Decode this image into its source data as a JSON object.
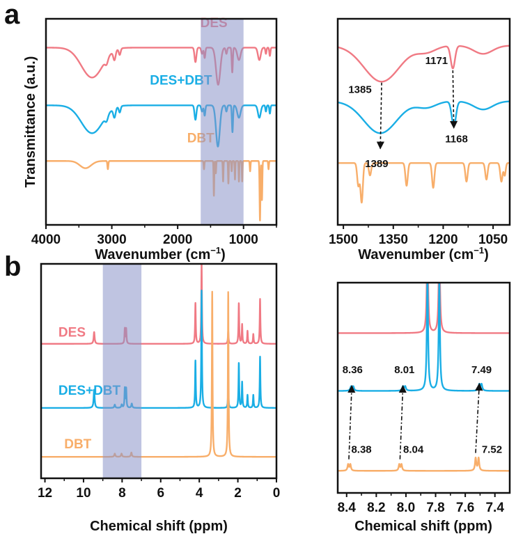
{
  "colors": {
    "DES": "#f07a84",
    "DES+DBT": "#1aaee5",
    "DBT": "#f8ae6a",
    "shade": "#8a93c8"
  },
  "chart_data": [
    {
      "id": "a_left",
      "panel_label": "a",
      "type": "line",
      "xlabel": "Wavenumber (cm",
      "xlabel_sup": "−1",
      "xlabel_end": ")",
      "ylabel": "Transmittance (a.u.)",
      "xlim": [
        4000,
        500
      ],
      "ylim": [
        0,
        10
      ],
      "xticks": [
        4000,
        3000,
        2000,
        1000
      ],
      "minor_ticks": [
        3500,
        2500,
        1500,
        500
      ],
      "shade": [
        1650,
        1000
      ],
      "series": [
        {
          "name": "DES",
          "label": "DES",
          "offset": 8.6,
          "label_x": 1450,
          "label_y": 9.6,
          "peaks": [
            [
              3300,
              1.45,
              230
            ],
            [
              3080,
              0.25,
              30
            ],
            [
              2960,
              0.45,
              25
            ],
            [
              2880,
              0.3,
              20
            ],
            [
              1730,
              0.7,
              20
            ],
            [
              1630,
              0.3,
              18
            ],
            [
              1590,
              0.5,
              14
            ],
            [
              1385,
              1.8,
              45
            ],
            [
              1260,
              0.3,
              15
            ],
            [
              1171,
              1.2,
              12
            ],
            [
              1070,
              0.6,
              35
            ],
            [
              760,
              0.6,
              30
            ],
            [
              660,
              0.3,
              12
            ],
            [
              600,
              0.4,
              12
            ]
          ]
        },
        {
          "name": "DES+DBT",
          "label": "DES+DBT",
          "offset": 5.8,
          "label_x": 1950,
          "label_y": 6.8,
          "peaks": [
            [
              3300,
              1.35,
              230
            ],
            [
              3080,
              0.25,
              30
            ],
            [
              2960,
              0.45,
              25
            ],
            [
              2880,
              0.3,
              20
            ],
            [
              1730,
              0.7,
              20
            ],
            [
              1630,
              0.3,
              18
            ],
            [
              1590,
              0.5,
              14
            ],
            [
              1389,
              2.0,
              40
            ],
            [
              1260,
              0.3,
              15
            ],
            [
              1168,
              1.3,
              12
            ],
            [
              1070,
              0.6,
              35
            ],
            [
              760,
              0.6,
              30
            ],
            [
              660,
              0.3,
              12
            ],
            [
              600,
              0.4,
              12
            ]
          ]
        },
        {
          "name": "DBT",
          "label": "DBT",
          "offset": 3.1,
          "label_x": 1650,
          "label_y": 4.0,
          "peaks": [
            [
              3400,
              0.35,
              120
            ],
            [
              3060,
              0.4,
              10
            ],
            [
              1600,
              0.4,
              8
            ],
            [
              1450,
              1.7,
              7
            ],
            [
              1420,
              0.6,
              7
            ],
            [
              1310,
              1.0,
              7
            ],
            [
              1230,
              1.1,
              7
            ],
            [
              1180,
              0.5,
              7
            ],
            [
              1130,
              0.9,
              7
            ],
            [
              1070,
              1.0,
              7
            ],
            [
              1020,
              1.0,
              7
            ],
            [
              900,
              0.5,
              8
            ],
            [
              750,
              2.9,
              9
            ],
            [
              720,
              1.9,
              8
            ],
            [
              620,
              0.4,
              8
            ]
          ]
        }
      ]
    },
    {
      "id": "a_right",
      "type": "line",
      "xlabel": "Wavenumber (cm",
      "xlabel_sup": "−1",
      "xlabel_end": ")",
      "xlim": [
        1517,
        1000
      ],
      "ylim": [
        0,
        10
      ],
      "xticks": [
        1500,
        1350,
        1200,
        1050
      ],
      "minor_ticks": [
        1425,
        1275,
        1125
      ],
      "series": [
        {
          "name": "DES",
          "offset": 8.7,
          "peaks": [
            [
              1385,
              1.75,
              75
            ],
            [
              1171,
              1.1,
              9
            ],
            [
              1250,
              0.3,
              40
            ],
            [
              1080,
              0.4,
              40
            ]
          ]
        },
        {
          "name": "DES+DBT",
          "offset": 6.0,
          "peaks": [
            [
              1389,
              1.55,
              70
            ],
            [
              1168,
              1.2,
              9
            ],
            [
              1250,
              0.3,
              40
            ],
            [
              1080,
              0.4,
              40
            ]
          ]
        },
        {
          "name": "DBT",
          "offset": 3.0,
          "peaks": [
            [
              1455,
              1.1,
              5
            ],
            [
              1445,
              1.9,
              5
            ],
            [
              1420,
              0.6,
              5
            ],
            [
              1310,
              1.1,
              5
            ],
            [
              1230,
              1.2,
              5
            ],
            [
              1130,
              0.9,
              5
            ],
            [
              1070,
              0.8,
              5
            ],
            [
              1025,
              0.9,
              5
            ],
            [
              1015,
              0.6,
              4
            ]
          ]
        }
      ],
      "annotations": [
        {
          "text": "1385",
          "from": [
            1385,
            6.9
          ],
          "to": [
            1389,
            3.7
          ],
          "label_at": [
            1450,
            6.4
          ]
        },
        {
          "text": "1171",
          "from": [
            1171,
            7.5
          ],
          "to": [
            1168,
            4.7
          ],
          "label_at": [
            1220,
            7.8
          ]
        },
        {
          "text": "1389",
          "label_at": [
            1400,
            2.8
          ]
        },
        {
          "text": "1168",
          "label_at": [
            1160,
            4.0
          ]
        }
      ]
    },
    {
      "id": "b_left",
      "panel_label": "b",
      "type": "line",
      "xlabel": "Chemical shift (ppm)",
      "xlim": [
        12.2,
        0
      ],
      "ylim": [
        0,
        10
      ],
      "xticks": [
        12,
        10,
        8,
        6,
        4,
        2,
        0
      ],
      "minor_ticks": [
        11,
        9,
        7,
        5,
        3,
        1
      ],
      "shade": [
        9,
        7
      ],
      "series": [
        {
          "name": "DES",
          "label": "DES",
          "offset": 6.27,
          "label_x": 11.3,
          "label_y": 6.6,
          "peaks": [
            [
              9.45,
              0.55,
              0.03
            ],
            [
              7.86,
              0.7,
              0.02
            ],
            [
              7.79,
              0.7,
              0.02
            ],
            [
              4.2,
              1.9,
              0.02
            ],
            [
              3.88,
              3.75,
              0.02
            ],
            [
              2.5,
              0.6,
              0.02
            ],
            [
              1.95,
              1.9,
              0.02
            ],
            [
              1.78,
              0.9,
              0.02
            ],
            [
              1.5,
              0.6,
              0.02
            ],
            [
              1.2,
              0.45,
              0.02
            ],
            [
              0.85,
              2.1,
              0.02
            ]
          ]
        },
        {
          "name": "DES+DBT",
          "label": "DES+DBT",
          "offset": 3.28,
          "label_x": 11.3,
          "label_y": 3.9,
          "peaks": [
            [
              9.45,
              0.85,
              0.03
            ],
            [
              8.38,
              0.15,
              0.03
            ],
            [
              8.02,
              0.15,
              0.03
            ],
            [
              7.86,
              0.9,
              0.02
            ],
            [
              7.79,
              0.9,
              0.02
            ],
            [
              7.5,
              0.2,
              0.03
            ],
            [
              4.2,
              2.2,
              0.02
            ],
            [
              3.88,
              5.5,
              0.02
            ],
            [
              2.5,
              0.9,
              0.02
            ],
            [
              1.95,
              2.1,
              0.02
            ],
            [
              1.78,
              1.2,
              0.02
            ],
            [
              1.5,
              0.6,
              0.02
            ],
            [
              1.2,
              0.6,
              0.02
            ],
            [
              0.85,
              2.4,
              0.02
            ]
          ]
        },
        {
          "name": "DBT",
          "label": "DBT",
          "offset": 1.0,
          "label_x": 11.0,
          "label_y": 1.4,
          "peaks": [
            [
              8.38,
              0.15,
              0.03
            ],
            [
              8.03,
              0.15,
              0.03
            ],
            [
              7.52,
              0.2,
              0.03
            ],
            [
              3.33,
              7.7,
              0.02
            ],
            [
              2.5,
              7.7,
              0.02
            ]
          ]
        }
      ]
    },
    {
      "id": "b_right",
      "type": "line",
      "xlabel": "Chemical shift (ppm)",
      "xlim": [
        8.46,
        7.3
      ],
      "ylim": [
        0,
        10
      ],
      "xticks": [
        "8.4",
        "8.2",
        "8.0",
        "7.8",
        "7.6",
        "7.4"
      ],
      "minor_ticks": [
        8.3,
        8.1,
        7.9,
        7.7,
        7.5
      ],
      "series": [
        {
          "name": "DES",
          "offset": 7.6,
          "peaks": [
            [
              7.855,
              4.7,
              0.005
            ],
            [
              7.775,
              4.6,
              0.005
            ]
          ]
        },
        {
          "name": "DES+DBT",
          "offset": 4.85,
          "peaks": [
            [
              8.37,
              0.2,
              0.006
            ],
            [
              8.355,
              0.2,
              0.006
            ],
            [
              8.02,
              0.2,
              0.006
            ],
            [
              8.005,
              0.2,
              0.006
            ],
            [
              7.855,
              5.4,
              0.005
            ],
            [
              7.775,
              5.2,
              0.005
            ],
            [
              7.505,
              0.3,
              0.006
            ],
            [
              7.49,
              0.3,
              0.006
            ]
          ]
        },
        {
          "name": "DBT",
          "offset": 1.05,
          "peaks": [
            [
              8.39,
              0.3,
              0.005
            ],
            [
              8.375,
              0.3,
              0.005
            ],
            [
              8.045,
              0.3,
              0.005
            ],
            [
              8.03,
              0.3,
              0.005
            ],
            [
              7.53,
              0.6,
              0.005
            ],
            [
              7.51,
              0.6,
              0.005
            ]
          ]
        }
      ],
      "annotations": [
        {
          "text": "8.36",
          "from": [
            8.385,
            1.6
          ],
          "to": [
            8.365,
            5.1
          ],
          "label_at": [
            8.36,
            5.7
          ]
        },
        {
          "text": "8.01",
          "from": [
            8.04,
            1.6
          ],
          "to": [
            8.02,
            5.1
          ],
          "label_at": [
            8.01,
            5.7
          ]
        },
        {
          "text": "7.49",
          "from": [
            7.53,
            1.9
          ],
          "to": [
            7.505,
            5.2
          ],
          "label_at": [
            7.49,
            5.7
          ]
        },
        {
          "text": "8.38",
          "label_at": [
            8.3,
            1.9
          ]
        },
        {
          "text": "8.04",
          "label_at": [
            7.95,
            1.9
          ]
        },
        {
          "text": "7.52",
          "label_at": [
            7.42,
            1.9
          ]
        }
      ]
    }
  ]
}
